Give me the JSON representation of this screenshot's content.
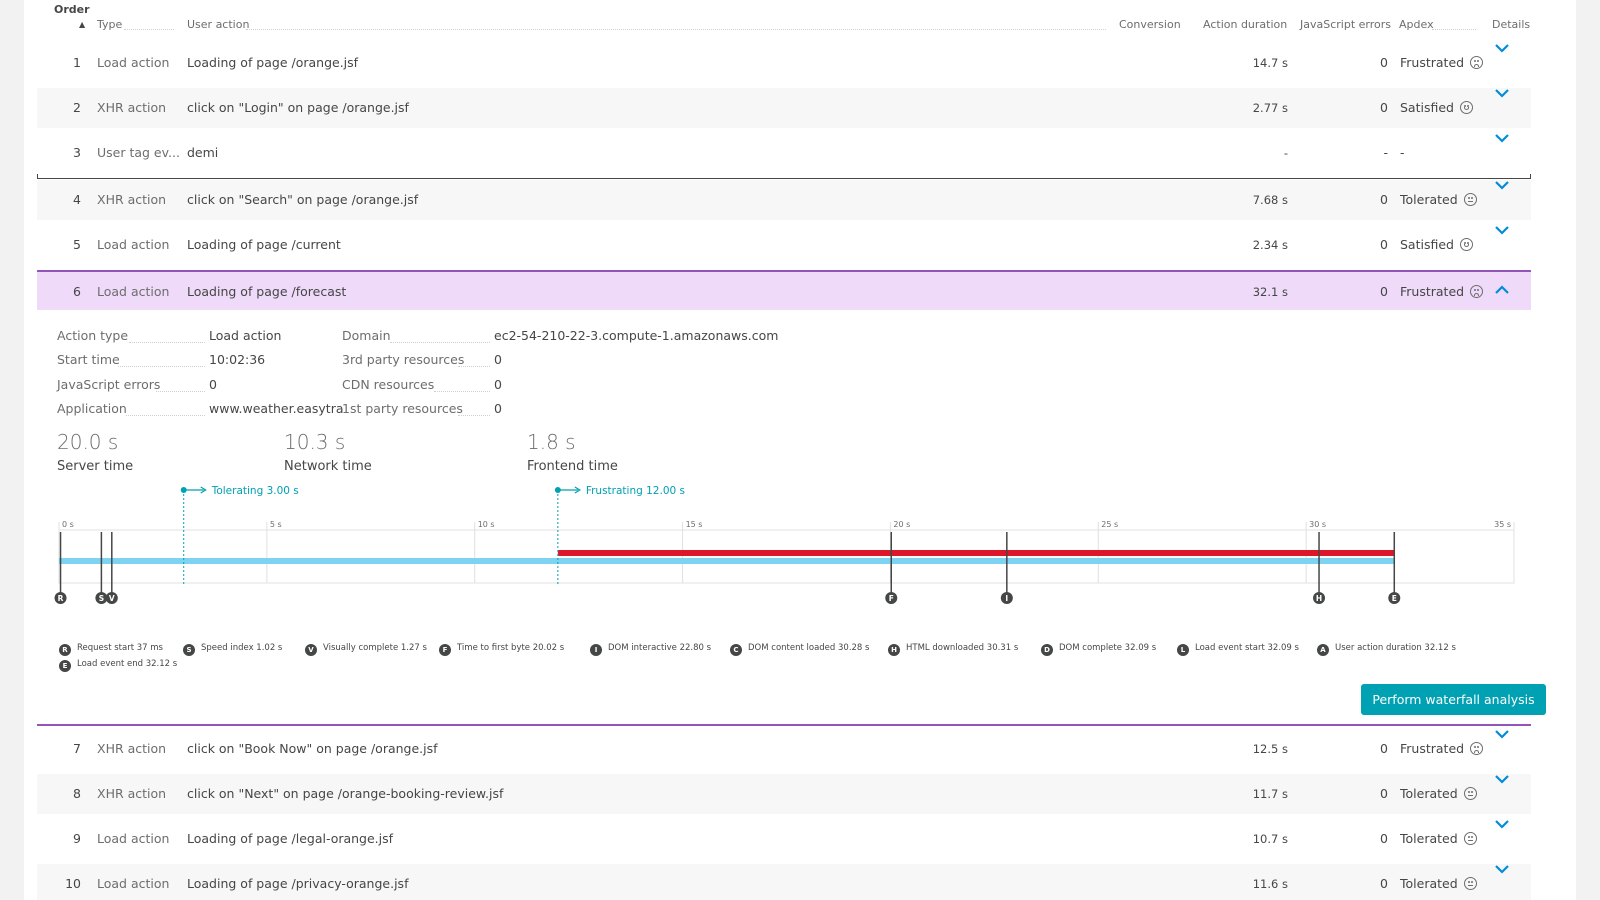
{
  "header": {
    "order": "Order",
    "type": "Type",
    "user_action": "User action",
    "conversion": "Conversion",
    "action_duration": "Action duration",
    "js_errors": "JavaScript errors",
    "apdex": "Apdex",
    "details": "Details"
  },
  "rows": [
    {
      "order": "1",
      "type": "Load action",
      "action": "Loading of page /orange.jsf",
      "duration": "14.7 s",
      "js": "0",
      "apdex": "Frustrated",
      "face": "sad"
    },
    {
      "order": "2",
      "type": "XHR action",
      "action": "click on \"Login\" on page /orange.jsf",
      "duration": "2.77 s",
      "js": "0",
      "apdex": "Satisfied",
      "face": "happy"
    },
    {
      "order": "3",
      "type": "User tag ev...",
      "action": "demi",
      "duration": "-",
      "js": "-",
      "apdex": "-",
      "face": ""
    },
    {
      "order": "4",
      "type": "XHR action",
      "action": "click on \"Search\" on page /orange.jsf",
      "duration": "7.68 s",
      "js": "0",
      "apdex": "Tolerated",
      "face": "neutral"
    },
    {
      "order": "5",
      "type": "Load action",
      "action": "Loading of page /current",
      "duration": "2.34 s",
      "js": "0",
      "apdex": "Satisfied",
      "face": "happy"
    },
    {
      "order": "6",
      "type": "Load action",
      "action": "Loading of page /forecast",
      "duration": "32.1 s",
      "js": "0",
      "apdex": "Frustrated",
      "face": "sad"
    },
    {
      "order": "7",
      "type": "XHR action",
      "action": "click on \"Book Now\" on page /orange.jsf",
      "duration": "12.5 s",
      "js": "0",
      "apdex": "Frustrated",
      "face": "sad"
    },
    {
      "order": "8",
      "type": "XHR action",
      "action": "click on \"Next\" on page /orange-booking-review.jsf",
      "duration": "11.7 s",
      "js": "0",
      "apdex": "Tolerated",
      "face": "neutral"
    },
    {
      "order": "9",
      "type": "Load action",
      "action": "Loading of page /legal-orange.jsf",
      "duration": "10.7 s",
      "js": "0",
      "apdex": "Tolerated",
      "face": "neutral"
    },
    {
      "order": "10",
      "type": "Load action",
      "action": "Loading of page /privacy-orange.jsf",
      "duration": "11.6 s",
      "js": "0",
      "apdex": "Tolerated",
      "face": "neutral"
    }
  ],
  "details": {
    "action_type_label": "Action type",
    "action_type": "Load action",
    "start_time_label": "Start time",
    "start_time": "10:02:36",
    "js_errors_label": "JavaScript errors",
    "js_errors": "0",
    "application_label": "Application",
    "application": "www.weather.easytra",
    "domain_label": "Domain",
    "domain": "ec2-54-210-22-3.compute-1.amazonaws.com",
    "third_party_label": "3rd party resources",
    "third_party": "0",
    "cdn_label": "CDN resources",
    "cdn": "0",
    "first_party_label": "1st party resources",
    "first_party": "0",
    "server_time": "20.0 s",
    "server_time_label": "Server time",
    "network_time": "10.3 s",
    "network_time_label": "Network time",
    "frontend_time": "1.8 s",
    "frontend_time_label": "Frontend time",
    "tolerating": "Tolerating 3.00 s",
    "frustrating": "Frustrating 12.00 s",
    "button": "Perform waterfall analysis"
  },
  "timeline": {
    "ticks": [
      "0 s",
      "5 s",
      "10 s",
      "15 s",
      "20 s",
      "25 s",
      "30 s",
      "35 s"
    ],
    "tick_values": [
      0,
      5,
      10,
      15,
      20,
      25,
      30,
      35
    ],
    "max": 35,
    "tolerating_s": 3.0,
    "frustrating_s": 12.0,
    "action_end_s": 32.12,
    "colors": {
      "bar": "#7dd3f0",
      "frustrated": "#dc172a",
      "threshold": "#00a1b2",
      "marker": "#454646"
    },
    "markers": [
      {
        "letter": "R",
        "value": 0.037
      },
      {
        "letter": "S",
        "value": 1.02
      },
      {
        "letter": "V",
        "value": 1.27
      },
      {
        "letter": "F",
        "value": 20.02
      },
      {
        "letter": "I",
        "value": 22.8
      },
      {
        "letter": "H",
        "value": 30.31
      },
      {
        "letter": "E",
        "value": 32.12
      }
    ]
  },
  "legend": [
    {
      "letter": "R",
      "text": "Request start 37 ms"
    },
    {
      "letter": "S",
      "text": "Speed index 1.02 s"
    },
    {
      "letter": "V",
      "text": "Visually complete 1.27 s"
    },
    {
      "letter": "F",
      "text": "Time to first byte 20.02 s"
    },
    {
      "letter": "I",
      "text": "DOM interactive 22.80 s"
    },
    {
      "letter": "C",
      "text": "DOM content loaded 30.28 s"
    },
    {
      "letter": "H",
      "text": "HTML downloaded 30.31 s"
    },
    {
      "letter": "D",
      "text": "DOM complete 32.09 s"
    },
    {
      "letter": "L",
      "text": "Load event start 32.09 s"
    },
    {
      "letter": "A",
      "text": "User action duration 32.12 s"
    },
    {
      "letter": "E",
      "text": "Load event end 32.12 s"
    }
  ]
}
